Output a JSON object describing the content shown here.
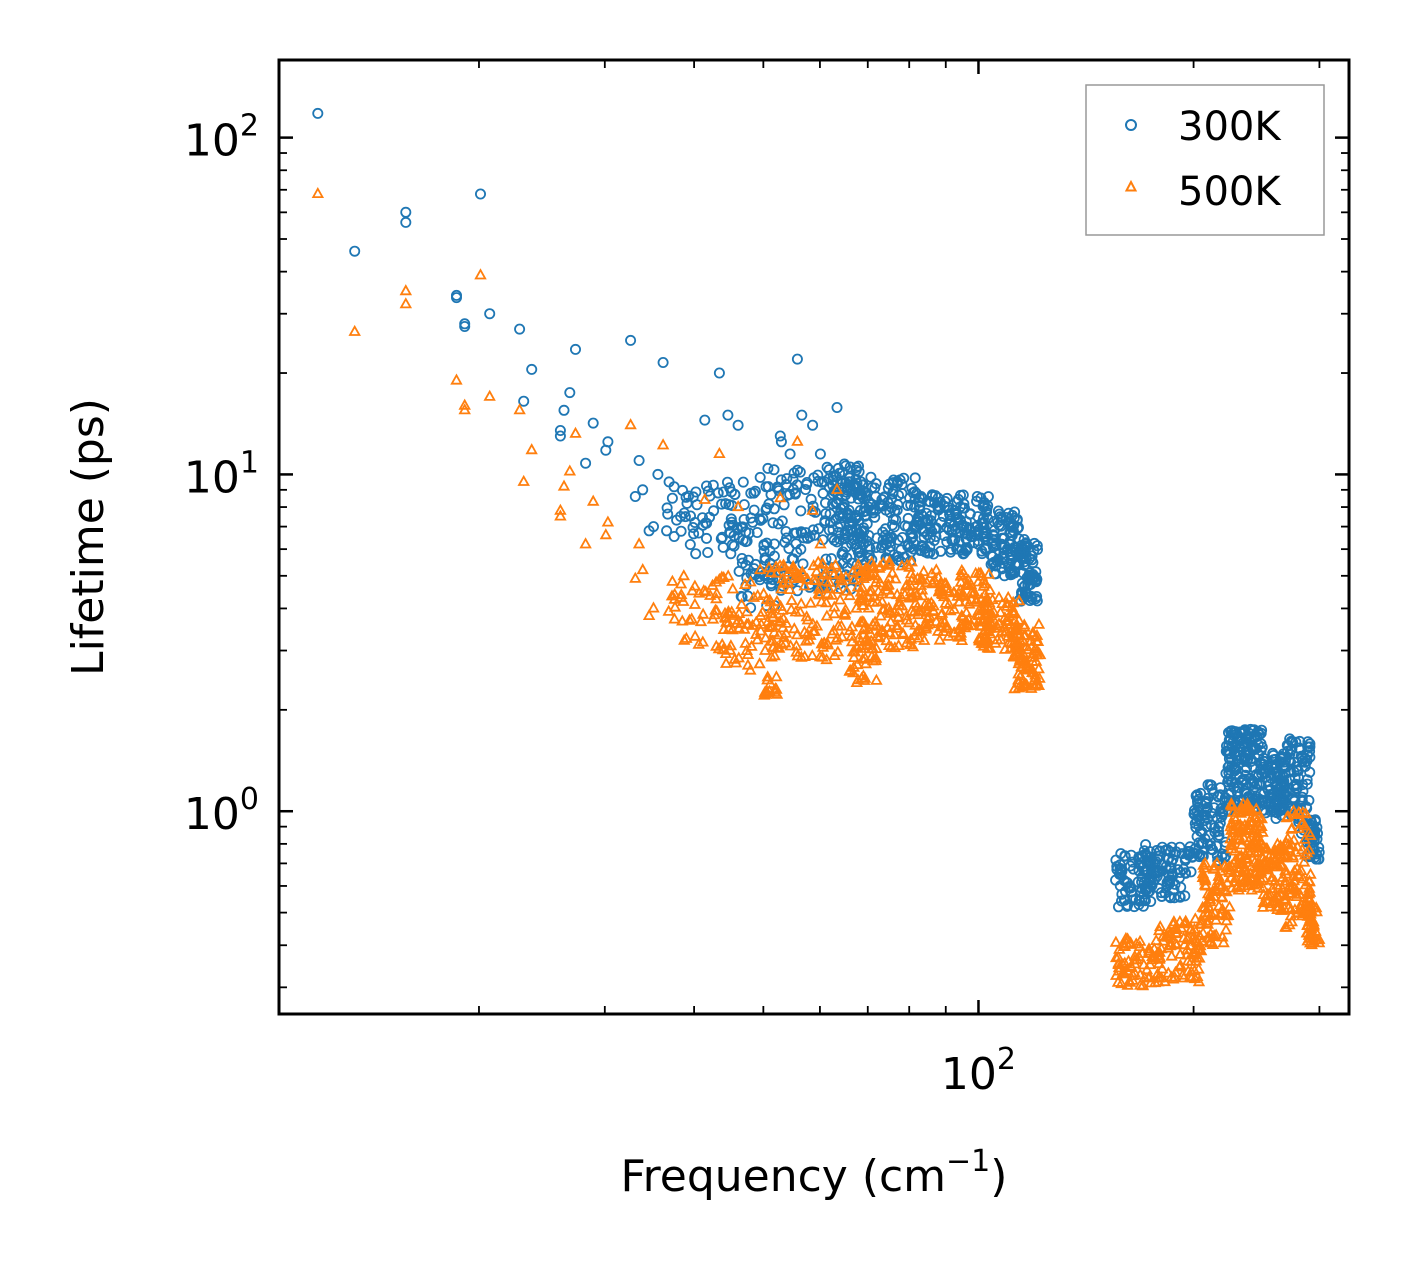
{
  "chart_data": {
    "type": "scatter",
    "title": "",
    "xlabel": "Frequency (cm",
    "xlabel_sup": "−1",
    "xlabel_close": ")",
    "ylabel": "Lifetime (ps)",
    "xscale": "log",
    "yscale": "log",
    "xlim": [
      10.5,
      330
    ],
    "ylim": [
      0.25,
      170
    ],
    "x_ticks": [
      {
        "value": 100,
        "base": "10",
        "exp": "2"
      }
    ],
    "y_ticks": [
      {
        "value": 1,
        "base": "10",
        "exp": "0"
      },
      {
        "value": 10,
        "base": "10",
        "exp": "1"
      },
      {
        "value": 100,
        "base": "10",
        "exp": "2"
      }
    ],
    "legend_position": "top-right",
    "series": [
      {
        "name": "300K",
        "marker": "circle",
        "color": "#1f77b4",
        "points": [
          [
            11.9,
            118
          ],
          [
            13.4,
            46
          ],
          [
            15.8,
            60
          ],
          [
            15.8,
            56
          ],
          [
            18.6,
            34
          ],
          [
            18.6,
            33.5
          ],
          [
            19.1,
            28
          ],
          [
            19.1,
            27.5
          ],
          [
            20.1,
            68
          ],
          [
            20.7,
            30
          ],
          [
            22.8,
            27
          ],
          [
            23.1,
            16.5
          ],
          [
            23.7,
            20.5
          ],
          [
            26.0,
            13.5
          ],
          [
            26.0,
            13
          ],
          [
            26.3,
            15.5
          ],
          [
            26.8,
            17.5
          ],
          [
            27.3,
            23.5
          ],
          [
            28.2,
            10.8
          ],
          [
            28.9,
            14.2
          ],
          [
            30.1,
            11.8
          ],
          [
            30.3,
            12.5
          ],
          [
            32.6,
            25
          ],
          [
            33.1,
            8.6
          ],
          [
            33.5,
            11
          ],
          [
            33.9,
            9
          ],
          [
            34.6,
            6.8
          ],
          [
            35.1,
            7
          ],
          [
            35.6,
            10
          ],
          [
            36.2,
            21.5
          ],
          [
            36.9,
            9.5
          ],
          [
            37.3,
            8.5
          ],
          [
            38.3,
            7.5
          ],
          [
            39.1,
            8.2
          ],
          [
            40.1,
            7.2
          ],
          [
            40.6,
            6.7
          ],
          [
            41.4,
            14.5
          ],
          [
            42.6,
            7.8
          ],
          [
            43.4,
            20
          ],
          [
            44.6,
            15
          ],
          [
            46.1,
            14
          ],
          [
            48.5,
            8.8
          ],
          [
            49.5,
            9.8
          ],
          [
            50.8,
            9.2
          ],
          [
            52.8,
            13
          ],
          [
            53.0,
            12.5
          ],
          [
            54.5,
            11.5
          ],
          [
            55.8,
            22
          ],
          [
            56.6,
            15
          ],
          [
            58.6,
            14
          ],
          [
            60.1,
            11.5
          ],
          [
            61.4,
            10.5
          ],
          [
            63.4,
            15.8
          ],
          [
            66.1,
            9.5
          ],
          [
            70.2,
            8
          ]
        ],
        "clusters": [
          {
            "x_range": [
              36.5,
              50
            ],
            "y_min": 5.8,
            "y_max": 9.5,
            "count": 70
          },
          {
            "x_range": [
              46,
              52
            ],
            "y_min": 4.0,
            "y_max": 7.5,
            "count": 40
          },
          {
            "x_range": [
              50,
              70
            ],
            "y_min": 4.5,
            "y_max": 10.5,
            "count": 170
          },
          {
            "x_range": [
              62,
              68
            ],
            "y_min": 6,
            "y_max": 10.8,
            "count": 60
          },
          {
            "x_range": [
              68,
              82
            ],
            "y_min": 5.5,
            "y_max": 10,
            "count": 130
          },
          {
            "x_range": [
              82,
              104
            ],
            "y_min": 5.8,
            "y_max": 8.8,
            "count": 160
          },
          {
            "x_range": [
              104,
              114
            ],
            "y_min": 5.0,
            "y_max": 7.8,
            "count": 90
          },
          {
            "x_range": [
              114,
              121
            ],
            "y_min": 4.2,
            "y_max": 6.5,
            "count": 70
          },
          {
            "x_range": [
              155,
              175
            ],
            "y_min": 0.52,
            "y_max": 0.75,
            "count": 70
          },
          {
            "x_range": [
              170,
              200
            ],
            "y_min": 0.55,
            "y_max": 0.8,
            "count": 90
          },
          {
            "x_range": [
              200,
              222
            ],
            "y_min": 0.7,
            "y_max": 1.2,
            "count": 90
          },
          {
            "x_range": [
              222,
              250
            ],
            "y_min": 1.0,
            "y_max": 1.75,
            "count": 170
          },
          {
            "x_range": [
              250,
              268
            ],
            "y_min": 0.95,
            "y_max": 1.5,
            "count": 90
          },
          {
            "x_range": [
              268,
              292
            ],
            "y_min": 0.85,
            "y_max": 1.65,
            "count": 90
          },
          {
            "x_range": [
              288,
              300
            ],
            "y_min": 0.72,
            "y_max": 0.95,
            "count": 40
          }
        ]
      },
      {
        "name": "500K",
        "marker": "triangle",
        "color": "#ff7f0e",
        "points": [
          [
            11.9,
            68
          ],
          [
            13.4,
            26.5
          ],
          [
            15.8,
            35
          ],
          [
            15.8,
            32
          ],
          [
            18.6,
            19
          ],
          [
            19.1,
            16
          ],
          [
            19.1,
            15.5
          ],
          [
            20.1,
            39
          ],
          [
            20.7,
            17
          ],
          [
            22.8,
            15.5
          ],
          [
            23.1,
            9.5
          ],
          [
            23.7,
            11.8
          ],
          [
            26.0,
            7.8
          ],
          [
            26.0,
            7.5
          ],
          [
            26.3,
            9.2
          ],
          [
            26.8,
            10.2
          ],
          [
            27.3,
            13.2
          ],
          [
            28.2,
            6.2
          ],
          [
            28.9,
            8.3
          ],
          [
            30.1,
            6.6
          ],
          [
            30.3,
            7.2
          ],
          [
            32.6,
            14
          ],
          [
            33.1,
            4.9
          ],
          [
            33.5,
            6.2
          ],
          [
            33.9,
            5.2
          ],
          [
            34.6,
            3.8
          ],
          [
            35.1,
            4
          ],
          [
            36.2,
            12.2
          ],
          [
            37.3,
            4.8
          ],
          [
            38.3,
            4.3
          ],
          [
            40.1,
            4.1
          ],
          [
            41.4,
            8.4
          ],
          [
            43.4,
            11.5
          ],
          [
            46.1,
            8
          ],
          [
            48.5,
            4.3
          ],
          [
            49.5,
            5.2
          ],
          [
            52.8,
            8.5
          ],
          [
            55.8,
            12.5
          ],
          [
            58.6,
            7.8
          ],
          [
            60.1,
            6.2
          ],
          [
            63.4,
            9
          ],
          [
            70.2,
            4
          ]
        ],
        "clusters": [
          {
            "x_range": [
              36.5,
              50
            ],
            "y_min": 3.0,
            "y_max": 5.0,
            "count": 60
          },
          {
            "x_range": [
              44,
              52
            ],
            "y_min": 2.6,
            "y_max": 4.0,
            "count": 40
          },
          {
            "x_range": [
              50,
              52.5
            ],
            "y_min": 2.2,
            "y_max": 2.5,
            "count": 15
          },
          {
            "x_range": [
              50,
              70
            ],
            "y_min": 2.8,
            "y_max": 5.5,
            "count": 160
          },
          {
            "x_range": [
              66,
              72
            ],
            "y_min": 2.4,
            "y_max": 3.2,
            "count": 30
          },
          {
            "x_range": [
              68,
              82
            ],
            "y_min": 3.0,
            "y_max": 5.5,
            "count": 120
          },
          {
            "x_range": [
              82,
              104
            ],
            "y_min": 3.2,
            "y_max": 5.2,
            "count": 150
          },
          {
            "x_range": [
              100,
              114
            ],
            "y_min": 3.0,
            "y_max": 4.3,
            "count": 90
          },
          {
            "x_range": [
              112,
              122
            ],
            "y_min": 2.3,
            "y_max": 3.6,
            "count": 80
          },
          {
            "x_range": [
              155,
              180
            ],
            "y_min": 0.3,
            "y_max": 0.42,
            "count": 70
          },
          {
            "x_range": [
              178,
              205
            ],
            "y_min": 0.31,
            "y_max": 0.48,
            "count": 90
          },
          {
            "x_range": [
              205,
              225
            ],
            "y_min": 0.4,
            "y_max": 0.7,
            "count": 80
          },
          {
            "x_range": [
              225,
              250
            ],
            "y_min": 0.58,
            "y_max": 1.05,
            "count": 150
          },
          {
            "x_range": [
              250,
              270
            ],
            "y_min": 0.5,
            "y_max": 0.8,
            "count": 80
          },
          {
            "x_range": [
              268,
              292
            ],
            "y_min": 0.45,
            "y_max": 1.0,
            "count": 90
          },
          {
            "x_range": [
              288,
              300
            ],
            "y_min": 0.4,
            "y_max": 0.52,
            "count": 40
          }
        ]
      }
    ]
  }
}
